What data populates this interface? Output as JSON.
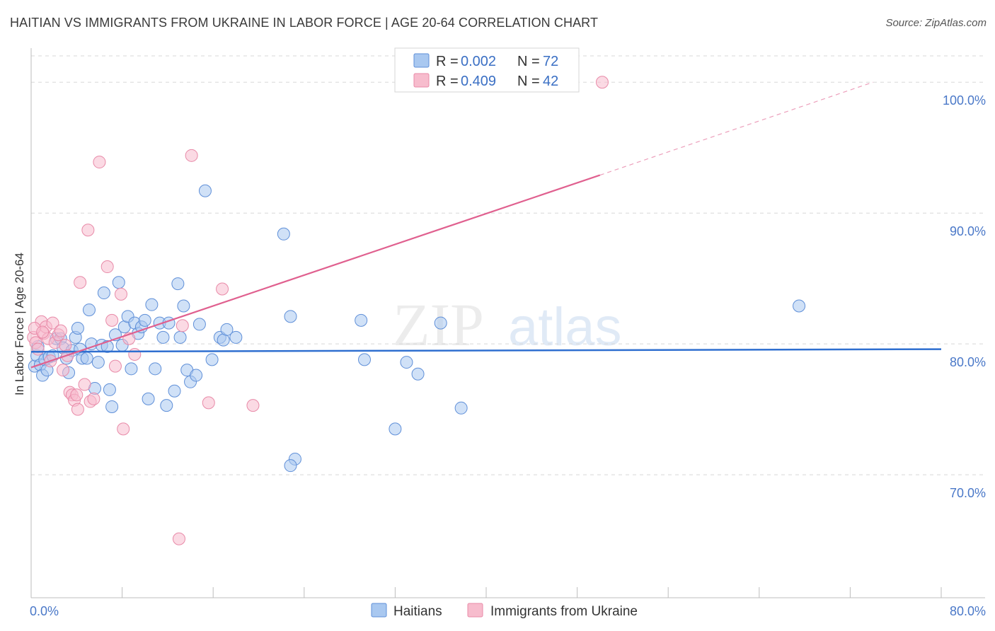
{
  "title": "HAITIAN VS IMMIGRANTS FROM UKRAINE IN LABOR FORCE | AGE 20-64 CORRELATION CHART",
  "source": "Source: ZipAtlas.com",
  "watermark": {
    "zip": "ZIP",
    "atlas": "atlas"
  },
  "colors": {
    "haitians_fill": "#a9c8f0",
    "haitians_stroke": "#5f8fd8",
    "haitians_line": "#2f6fd0",
    "ukraine_fill": "#f7bccd",
    "ukraine_stroke": "#e88aa8",
    "ukraine_line": "#e0608f",
    "grid": "#d8d8d8",
    "axis_label": "#4a78c8"
  },
  "legend": {
    "rows": [
      {
        "r_label": "R = ",
        "r_value": "0.002",
        "n_label": "N = ",
        "n_value": "72"
      },
      {
        "r_label": "R = ",
        "r_value": "0.409",
        "n_label": "N = ",
        "n_value": "42"
      }
    ]
  },
  "chart_data": {
    "type": "scatter",
    "title": "HAITIAN VS IMMIGRANTS FROM UKRAINE IN LABOR FORCE | AGE 20-64 CORRELATION CHART",
    "xlabel": "",
    "ylabel": "In Labor Force | Age 20-64",
    "xlim": [
      0,
      80
    ],
    "ylim": [
      60.6,
      102.5
    ],
    "x_tick_labels": [
      "0.0%",
      "80.0%"
    ],
    "y_ticks": [
      70,
      80,
      90,
      100
    ],
    "y_tick_labels": [
      "70.0%",
      "80.0%",
      "90.0%",
      "100.0%"
    ],
    "legend_position": "top-center",
    "series": [
      {
        "name": "Haitians",
        "R": 0.002,
        "N": 72,
        "trend": {
          "x": [
            0,
            80
          ],
          "y": [
            79.4,
            79.6
          ]
        },
        "points": [
          [
            0.3,
            78.3
          ],
          [
            0.5,
            79.1
          ],
          [
            0.8,
            78.4
          ],
          [
            1.0,
            77.6
          ],
          [
            1.2,
            78.8
          ],
          [
            1.4,
            78.0
          ],
          [
            1.6,
            79.0
          ],
          [
            1.9,
            79.1
          ],
          [
            2.2,
            80.4
          ],
          [
            2.6,
            80.4
          ],
          [
            2.8,
            79.7
          ],
          [
            3.1,
            78.9
          ],
          [
            3.3,
            77.8
          ],
          [
            3.6,
            79.5
          ],
          [
            3.9,
            80.5
          ],
          [
            4.1,
            81.2
          ],
          [
            4.3,
            79.6
          ],
          [
            4.5,
            78.9
          ],
          [
            4.9,
            78.9
          ],
          [
            5.1,
            82.6
          ],
          [
            5.3,
            80.0
          ],
          [
            5.6,
            76.6
          ],
          [
            5.9,
            78.6
          ],
          [
            6.2,
            79.9
          ],
          [
            6.4,
            83.9
          ],
          [
            6.7,
            79.8
          ],
          [
            6.9,
            76.5
          ],
          [
            7.1,
            75.2
          ],
          [
            7.4,
            80.7
          ],
          [
            7.7,
            84.7
          ],
          [
            8.0,
            79.9
          ],
          [
            8.2,
            81.3
          ],
          [
            8.5,
            82.1
          ],
          [
            8.8,
            78.1
          ],
          [
            9.1,
            81.6
          ],
          [
            9.4,
            80.8
          ],
          [
            9.7,
            81.3
          ],
          [
            10.0,
            81.8
          ],
          [
            10.3,
            75.8
          ],
          [
            10.6,
            83.0
          ],
          [
            10.9,
            78.1
          ],
          [
            11.3,
            81.6
          ],
          [
            11.6,
            80.5
          ],
          [
            11.9,
            75.3
          ],
          [
            12.1,
            81.6
          ],
          [
            12.6,
            76.4
          ],
          [
            12.9,
            84.6
          ],
          [
            13.1,
            80.5
          ],
          [
            13.4,
            82.9
          ],
          [
            13.7,
            78.0
          ],
          [
            14.0,
            77.1
          ],
          [
            14.5,
            77.6
          ],
          [
            14.8,
            81.5
          ],
          [
            15.3,
            91.7
          ],
          [
            15.9,
            78.8
          ],
          [
            16.6,
            80.5
          ],
          [
            16.9,
            80.3
          ],
          [
            17.2,
            81.1
          ],
          [
            18.0,
            80.5
          ],
          [
            22.2,
            88.4
          ],
          [
            22.8,
            82.1
          ],
          [
            23.2,
            71.2
          ],
          [
            22.8,
            70.7
          ],
          [
            29.0,
            81.8
          ],
          [
            29.3,
            78.8
          ],
          [
            32.0,
            73.5
          ],
          [
            33.0,
            78.6
          ],
          [
            34.0,
            77.7
          ],
          [
            36.0,
            81.6
          ],
          [
            37.8,
            75.1
          ],
          [
            67.5,
            82.9
          ],
          [
            0.6,
            79.8
          ]
        ]
      },
      {
        "name": "Immigrants from Ukraine",
        "R": 0.409,
        "N": 42,
        "trend": {
          "x": [
            0,
            50
          ],
          "y": [
            78.2,
            92.9
          ]
        },
        "trend_dashed": {
          "x": [
            50,
            74
          ],
          "y": [
            92.9,
            100.0
          ]
        },
        "points": [
          [
            0.2,
            80.5
          ],
          [
            0.4,
            80.1
          ],
          [
            0.6,
            79.6
          ],
          [
            0.9,
            81.7
          ],
          [
            1.1,
            80.8
          ],
          [
            1.3,
            81.3
          ],
          [
            1.5,
            80.4
          ],
          [
            1.7,
            78.7
          ],
          [
            1.9,
            81.6
          ],
          [
            2.1,
            80.1
          ],
          [
            2.4,
            80.7
          ],
          [
            2.6,
            81.0
          ],
          [
            2.8,
            78.0
          ],
          [
            3.0,
            79.9
          ],
          [
            3.2,
            79.1
          ],
          [
            3.4,
            76.3
          ],
          [
            3.6,
            76.1
          ],
          [
            3.8,
            75.7
          ],
          [
            4.0,
            76.1
          ],
          [
            4.1,
            75.0
          ],
          [
            4.3,
            84.7
          ],
          [
            4.7,
            76.9
          ],
          [
            5.0,
            88.7
          ],
          [
            5.2,
            75.6
          ],
          [
            5.5,
            75.8
          ],
          [
            6.0,
            93.9
          ],
          [
            6.7,
            85.9
          ],
          [
            7.1,
            81.8
          ],
          [
            7.4,
            78.3
          ],
          [
            7.9,
            83.8
          ],
          [
            8.1,
            73.5
          ],
          [
            8.6,
            80.4
          ],
          [
            9.1,
            79.2
          ],
          [
            13.0,
            65.1
          ],
          [
            13.3,
            81.4
          ],
          [
            14.1,
            94.4
          ],
          [
            15.6,
            75.5
          ],
          [
            16.8,
            84.2
          ],
          [
            19.5,
            75.3
          ],
          [
            50.2,
            100.0
          ],
          [
            0.3,
            81.2
          ],
          [
            1.0,
            80.9
          ]
        ]
      }
    ]
  },
  "bottom_legend": [
    "Haitians",
    "Immigrants from Ukraine"
  ]
}
